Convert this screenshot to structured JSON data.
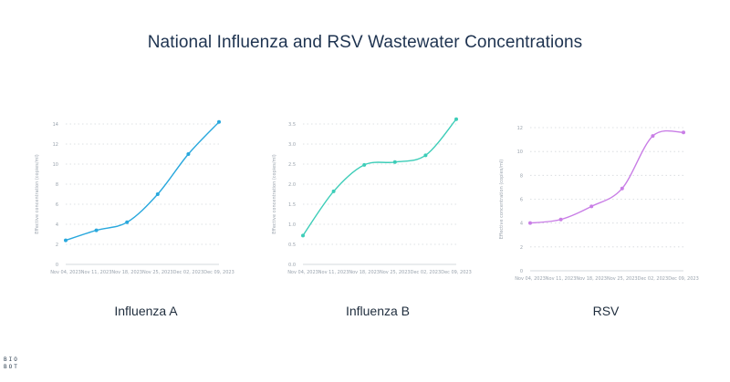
{
  "page_title": "National Influenza and RSV Wastewater Concentrations",
  "logo": {
    "line1": "BIO",
    "line2": "BOT"
  },
  "chart_data": [
    {
      "type": "line",
      "caption": "Influenza A",
      "ylabel": "Effective concentration (copies/ml)",
      "color": "#29a8dd",
      "x": [
        "Nov 04, 2023",
        "Nov 11, 2023",
        "Nov 18, 2023",
        "Nov 25, 2023",
        "Dec 02, 2023",
        "Dec 09, 2023"
      ],
      "values": [
        2.4,
        3.4,
        4.2,
        7.0,
        11.0,
        14.2
      ],
      "ylim": [
        0,
        14
      ],
      "yticks": [
        "0",
        "2",
        "4",
        "6",
        "8",
        "10",
        "12",
        "14"
      ],
      "ytick_values": [
        0,
        2,
        4,
        6,
        8,
        10,
        12,
        14
      ]
    },
    {
      "type": "line",
      "caption": "Influenza B",
      "ylabel": "Effective concentration (copies/ml)",
      "color": "#3dcdb8",
      "x": [
        "Nov 04, 2023",
        "Nov 11, 2023",
        "Nov 18, 2023",
        "Nov 25, 2023",
        "Dec 02, 2023",
        "Dec 09, 2023"
      ],
      "values": [
        0.72,
        1.82,
        2.48,
        2.55,
        2.72,
        3.62
      ],
      "ylim": [
        0,
        3.5
      ],
      "yticks": [
        "0.0",
        "0.5",
        "1.0",
        "1.5",
        "2.0",
        "2.5",
        "3.0",
        "3.5"
      ],
      "ytick_values": [
        0,
        0.5,
        1.0,
        1.5,
        2.0,
        2.5,
        3.0,
        3.5
      ]
    },
    {
      "type": "line",
      "caption": "RSV",
      "ylabel": "Effective concentration (copies/ml)",
      "color": "#c97ee6",
      "x": [
        "Nov 04, 2023",
        "Nov 11, 2023",
        "Nov 18, 2023",
        "Nov 25, 2023",
        "Dec 02, 2023",
        "Dec 09, 2023"
      ],
      "values": [
        4.0,
        4.3,
        5.4,
        6.9,
        11.3,
        11.6
      ],
      "ylim": [
        0,
        12
      ],
      "yticks": [
        "0",
        "2",
        "4",
        "6",
        "8",
        "10",
        "12"
      ],
      "ytick_values": [
        0,
        2,
        4,
        6,
        8,
        10,
        12
      ]
    }
  ]
}
